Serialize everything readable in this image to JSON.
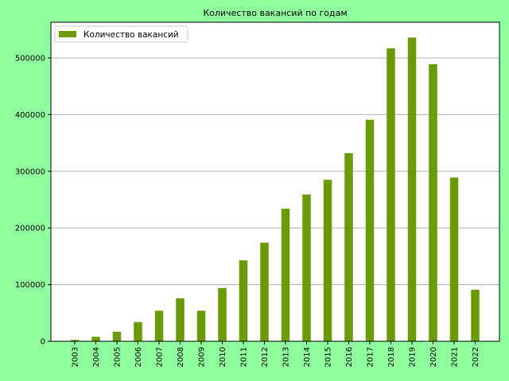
{
  "chart_data": {
    "type": "bar",
    "title": "Количество вакансий по годам",
    "xlabel": "",
    "ylabel": "",
    "categories": [
      "2003",
      "2004",
      "2005",
      "2006",
      "2007",
      "2008",
      "2009",
      "2010",
      "2011",
      "2012",
      "2013",
      "2014",
      "2015",
      "2016",
      "2017",
      "2018",
      "2019",
      "2020",
      "2021",
      "2022"
    ],
    "series": [
      {
        "name": "Количество вакансий",
        "values": [
          2500,
          8000,
          17000,
          34000,
          54000,
          76000,
          54000,
          94000,
          143000,
          174000,
          234000,
          259000,
          285000,
          332000,
          391000,
          517000,
          536000,
          489000,
          289000,
          91000
        ]
      }
    ],
    "ylim": [
      0,
      563000
    ],
    "yticks": [
      0,
      100000,
      200000,
      300000,
      400000,
      500000
    ],
    "ytick_labels": [
      "0",
      "100000",
      "200000",
      "300000",
      "400000",
      "500000"
    ],
    "grid": "horizontal",
    "legend_position": "top-left",
    "colors": {
      "background": "#90ff9e",
      "plot_background": "#ffffff",
      "bar": "#6a9a04",
      "grid": "#b0b0b0"
    }
  }
}
